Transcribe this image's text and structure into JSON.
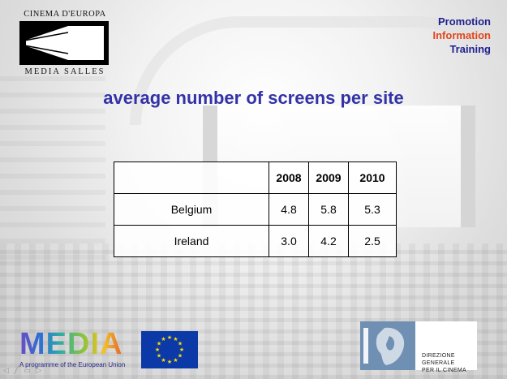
{
  "header": {
    "logo_top": "CINEMA D'EUROPA",
    "logo_bottom": "MEDIA SALLES",
    "nav": [
      "Promotion",
      "Information",
      "Training"
    ]
  },
  "title": "average number of screens per site",
  "table": {
    "headers": [
      "",
      "2008",
      "2009",
      "2010"
    ],
    "rows": [
      {
        "country": "Belgium",
        "values": [
          "4.8",
          "5.8",
          "5.3"
        ]
      },
      {
        "country": "Ireland",
        "values": [
          "3.0",
          "4.2",
          "2.5"
        ]
      }
    ]
  },
  "footer": {
    "media_word": "MEDIA",
    "media_tagline": "A programme of the European Union",
    "mibac_line1": "DIREZIONE GENERALE",
    "mibac_line2": "PER IL CINEMA"
  },
  "colors": {
    "title": "#3333a8",
    "nav_primary": "#1f1f8f",
    "nav_accent": "#e2461c",
    "eu_blue": "#0b3aa8",
    "eu_stars": "#ffdd00"
  },
  "icons": [
    "slide-nav-arrows-icon"
  ]
}
